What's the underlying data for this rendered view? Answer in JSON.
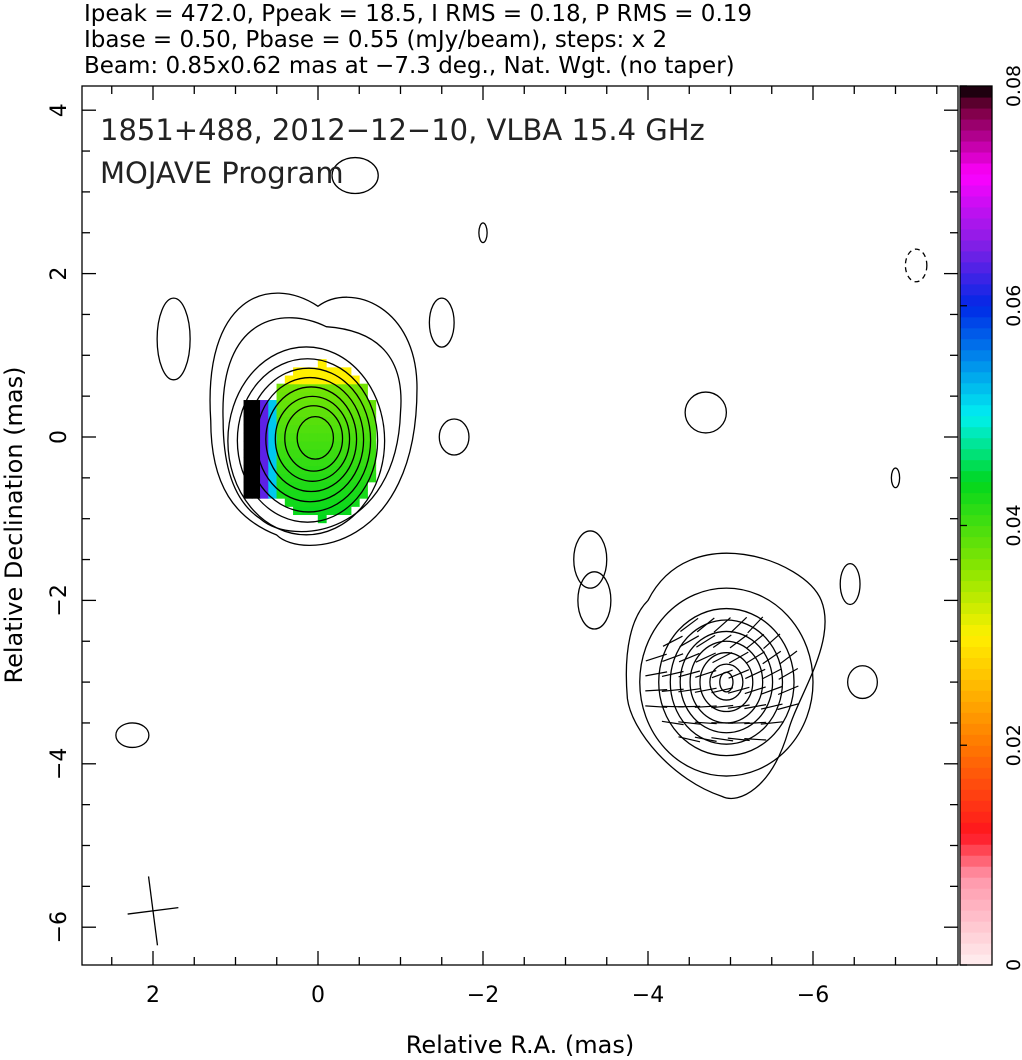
{
  "header": {
    "line1": "Ipeak = 472.0, Ppeak = 18.5, I RMS = 0.18, P RMS = 0.19",
    "line2": "Ibase = 0.50, Pbase = 0.55 (mJy/beam), steps: x 2",
    "line3": "Beam: 0.85x0.62 mas at −7.3 deg., Nat. Wgt. (no taper)"
  },
  "annotation": {
    "line1": "1851+488, 2012−12−10, VLBA 15.4 GHz",
    "line2": "MOJAVE Program"
  },
  "chart_data": {
    "type": "heatmap",
    "title": "1851+488, 2012−12−10, VLBA 15.4 GHz",
    "subtitle": "MOJAVE Program",
    "xlabel": "Relative R.A. (mas)",
    "ylabel": "Relative Declination (mas)",
    "xlim": [
      2.85,
      -7.9
    ],
    "ylim": [
      -6.5,
      4.3
    ],
    "x_reversed": true,
    "x_ticks": [
      2,
      0,
      -2,
      -4,
      -6
    ],
    "x_tick_labels": [
      "2",
      "0",
      "−2",
      "−4",
      "−6"
    ],
    "y_ticks": [
      4,
      2,
      0,
      -2,
      -4,
      -6
    ],
    "y_tick_labels": [
      "4",
      "2",
      "0",
      "−2",
      "−4",
      "−6"
    ],
    "colorbar": {
      "min": 0,
      "max": 0.08,
      "ticks": [
        0,
        0.02,
        0.04,
        0.06,
        0.08
      ],
      "tick_labels": [
        "0",
        "0.02",
        "0.04",
        "0.06",
        "0.08"
      ]
    },
    "components": [
      {
        "x": 0.0,
        "y": 0.0,
        "kind": "core"
      },
      {
        "x": -5.0,
        "y": -3.0,
        "kind": "jet_knot"
      }
    ],
    "fractional_polarization_map": {
      "x_range": [
        -0.65,
        1.0
      ],
      "y_range": [
        -0.95,
        0.95
      ],
      "typical_value": 0.04,
      "edge_value": 0.08
    },
    "beam": {
      "x": 2.0,
      "y": -5.8,
      "major_mas": 0.85,
      "minor_mas": 0.62,
      "pa_deg": -7.3
    },
    "grid": false
  }
}
